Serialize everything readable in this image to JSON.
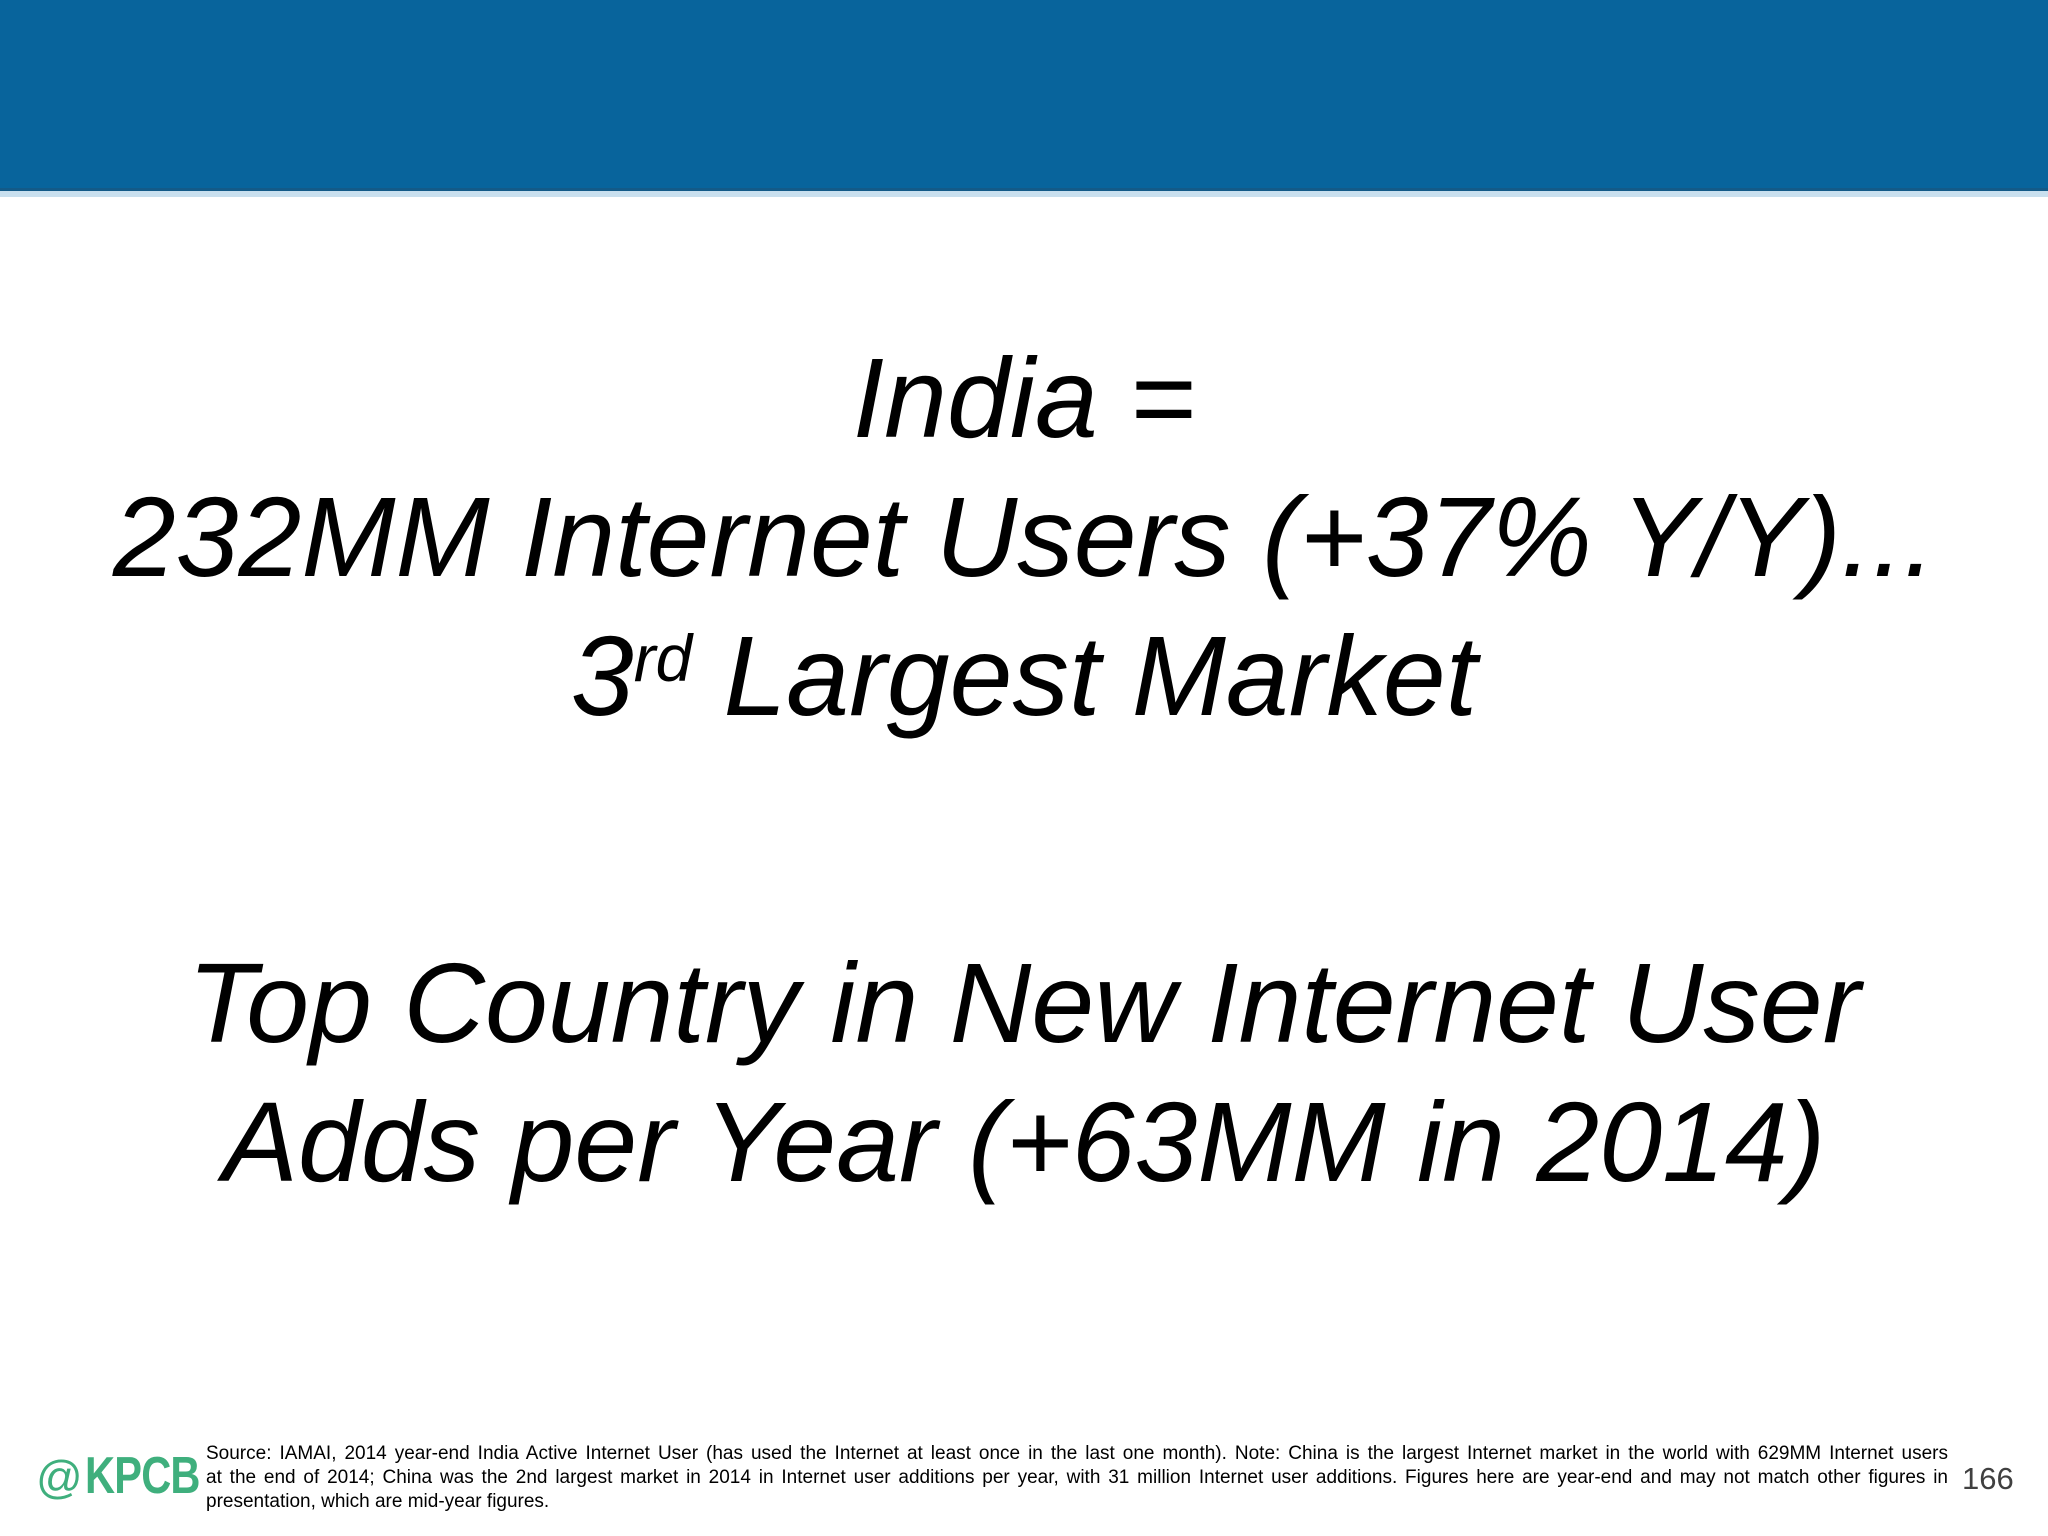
{
  "slide": {
    "heading_top": {
      "line1": "India =",
      "line2": "232MM Internet Users (+37% Y/Y)...",
      "line3_prefix": "3",
      "line3_superscript": "rd",
      "line3_suffix": " Largest Market"
    },
    "heading_bottom": {
      "line1": "Top Country in New Internet User",
      "line2": "Adds per Year (+63MM in 2014)"
    },
    "footer": {
      "logo_at": "@",
      "logo_text": "KPCB",
      "source_lines": [
        "Source: IAMAI, 2014 year-end India Active Internet User (has used the Internet at least once in the last one month). Note: China is the largest Internet market in the world with 629MM Internet users",
        "at the end of 2014; China was the 2nd largest market in 2014 in Internet user additions per year, with 31 million Internet user additions. Figures here are year-end and may not match other figures in",
        "presentation, which are mid-year figures."
      ],
      "page_number": "166"
    },
    "colors": {
      "header_blue": "#08649C",
      "header_edge_dark": "#135a88",
      "header_edge_light": "#c9e0ef",
      "logo_green": "#3FAF7D",
      "heading_text": "#000000",
      "page_number_gray": "#404040"
    }
  }
}
